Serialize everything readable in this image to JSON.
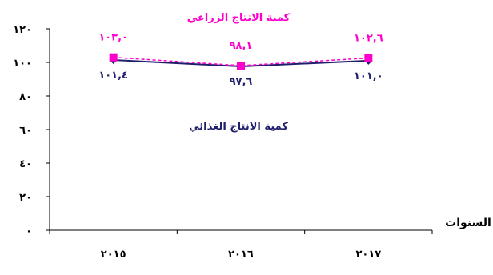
{
  "chart_data": {
    "type": "line",
    "title": "",
    "xlabel": "السنوات",
    "ylabel": "",
    "categories": [
      "٢٠١٥",
      "٢٠١٦",
      "٢٠١٧"
    ],
    "ylim": [
      0,
      120
    ],
    "yticks": [
      0,
      20,
      40,
      60,
      80,
      100,
      120
    ],
    "ytick_labels": [
      "٠",
      "٢٠",
      "٤٠",
      "٦٠",
      "٨٠",
      "١٠٠",
      "١٢٠"
    ],
    "grid": false,
    "series": [
      {
        "name": "كمية الانتاج الزراعي",
        "values": [
          103.0,
          98.1,
          102.6
        ],
        "value_labels": [
          "١٠٣,٠",
          "٩٨,١",
          "١٠٢,٦"
        ],
        "color": "#ff00cc",
        "line_style": "dashed",
        "marker": "square"
      },
      {
        "name": "كمية الانتاج الغذائي",
        "values": [
          101.4,
          97.6,
          101.0
        ],
        "value_labels": [
          "١٠١,٤",
          "٩٧,٦",
          "١٠١,٠"
        ],
        "color": "#1f1f6b",
        "line_style": "solid",
        "marker": "diamond"
      }
    ]
  }
}
